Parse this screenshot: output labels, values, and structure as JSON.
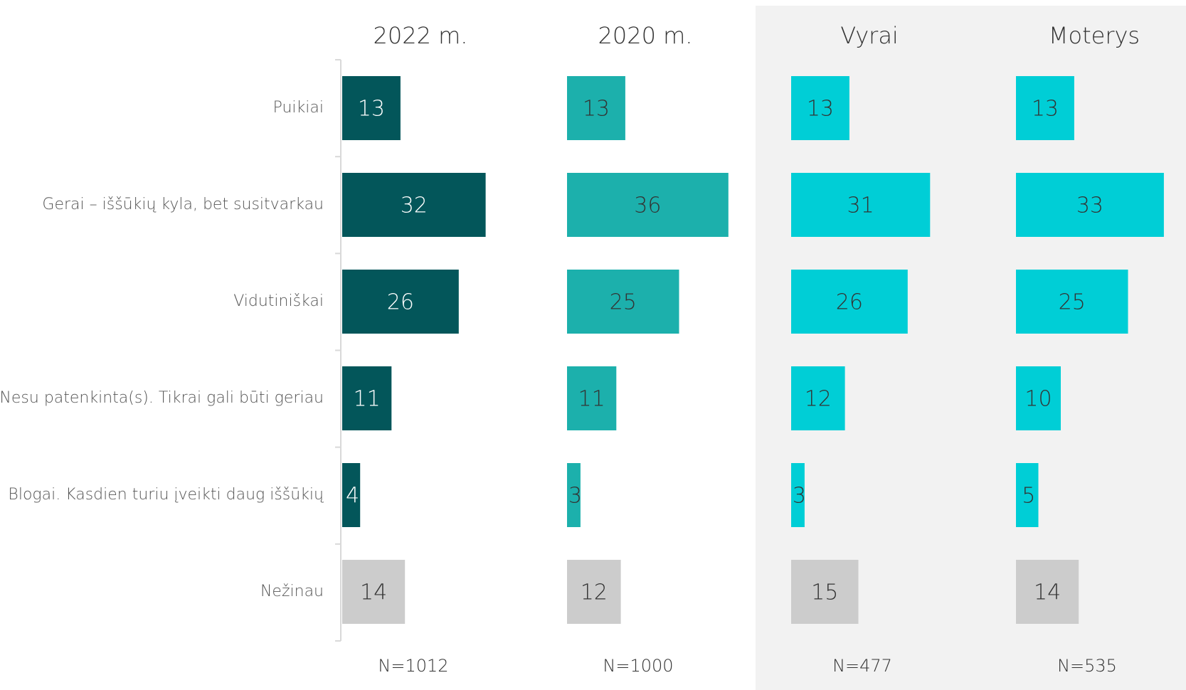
{
  "chart_data": {
    "type": "bar",
    "orientation": "horizontal",
    "categories": [
      "Puikiai",
      "Gerai – iššūkių kyla, bet susitvarkau",
      "Vidutiniškai",
      "Nesu patenkinta(s). Tikrai gali būti geriau",
      "Blogai. Kasdien turiu įveikti daug iššūkių",
      "Nežinau"
    ],
    "series": [
      {
        "name": "2022 m.",
        "n_label": "N=1012",
        "values": [
          13,
          32,
          26,
          11,
          4,
          14
        ],
        "color": "#03565A",
        "label_color": "#FFFFFF"
      },
      {
        "name": "2020 m.",
        "n_label": "N=1000",
        "values": [
          13,
          36,
          25,
          11,
          3,
          12
        ],
        "color": "#1CB0AC",
        "label_color": "#333333"
      },
      {
        "name": "Vyrai",
        "n_label": "N=477",
        "values": [
          13,
          31,
          26,
          12,
          3,
          15
        ],
        "color": "#00CED6",
        "label_color": "#333333"
      },
      {
        "name": "Moterys",
        "n_label": "N=535",
        "values": [
          13,
          33,
          25,
          10,
          5,
          14
        ],
        "color": "#00CED6",
        "label_color": "#333333"
      }
    ],
    "dont_know_color": "#CCCCCC",
    "highlight_background": "#F2F2F2",
    "highlighted_panels": [
      "Vyrai",
      "Moterys"
    ]
  }
}
